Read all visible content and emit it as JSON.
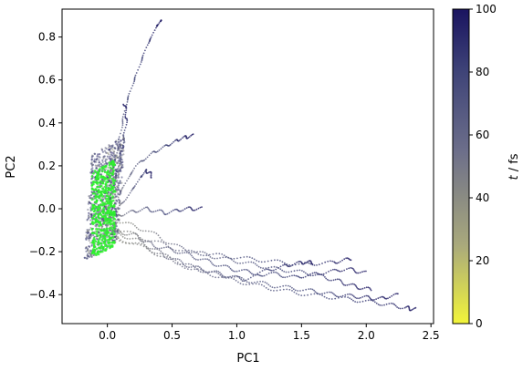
{
  "chart_data": {
    "type": "scatter",
    "title": "",
    "xlabel": "PC1",
    "ylabel": "PC2",
    "xlim": [
      -0.35,
      2.52
    ],
    "ylim": [
      -0.535,
      0.93
    ],
    "xticks": [
      0.0,
      0.5,
      1.0,
      1.5,
      2.0,
      2.5
    ],
    "xtick_labels": [
      "0.0",
      "0.5",
      "1.0",
      "1.5",
      "2.0",
      "2.5"
    ],
    "yticks": [
      -0.4,
      -0.2,
      0.0,
      0.2,
      0.4,
      0.6,
      0.8
    ],
    "ytick_labels": [
      "−0.4",
      "−0.2",
      "0.0",
      "0.2",
      "0.4",
      "0.6",
      "0.8"
    ],
    "grid": false,
    "colorbar": {
      "label": "t / fs",
      "label_parts": [
        "t",
        " / fs"
      ],
      "range": [
        0,
        100
      ],
      "ticks": [
        0,
        20,
        40,
        60,
        80,
        100
      ],
      "tick_labels": [
        "0",
        "20",
        "40",
        "60",
        "80",
        "100"
      ],
      "colors": [
        "#f2f53a",
        "#a9a97c",
        "#6c6e8a",
        "#3f4478",
        "#1a1460"
      ]
    },
    "start_region_color": "#2cf02c",
    "trajectories": [
      {
        "name": "",
        "points": [
          [
            -0.05,
            -0.1
          ],
          [
            0.0,
            0.05
          ],
          [
            0.05,
            0.2
          ],
          [
            0.1,
            0.35
          ],
          [
            0.15,
            0.5
          ],
          [
            0.22,
            0.62
          ],
          [
            0.3,
            0.75
          ],
          [
            0.38,
            0.85
          ],
          [
            0.42,
            0.88
          ]
        ]
      },
      {
        "name": "",
        "points": [
          [
            -0.05,
            -0.1
          ],
          [
            0.02,
            0.05
          ],
          [
            0.08,
            0.18
          ],
          [
            0.12,
            0.3
          ],
          [
            0.15,
            0.42
          ],
          [
            0.13,
            0.5
          ]
        ]
      },
      {
        "name": "",
        "points": [
          [
            0.0,
            -0.05
          ],
          [
            0.12,
            0.1
          ],
          [
            0.22,
            0.2
          ],
          [
            0.35,
            0.26
          ],
          [
            0.48,
            0.3
          ],
          [
            0.58,
            0.33
          ],
          [
            0.66,
            0.34
          ]
        ]
      },
      {
        "name": "",
        "points": [
          [
            0.0,
            -0.05
          ],
          [
            0.15,
            0.05
          ],
          [
            0.25,
            0.14
          ],
          [
            0.3,
            0.18
          ],
          [
            0.35,
            0.15
          ]
        ]
      },
      {
        "name": "",
        "points": [
          [
            0.0,
            -0.05
          ],
          [
            0.15,
            -0.02
          ],
          [
            0.3,
            0.0
          ],
          [
            0.45,
            -0.02
          ],
          [
            0.6,
            0.0
          ],
          [
            0.73,
            0.0
          ]
        ]
      },
      {
        "name": "",
        "points": [
          [
            0.0,
            -0.1
          ],
          [
            0.2,
            -0.12
          ],
          [
            0.35,
            -0.17
          ],
          [
            0.55,
            -0.2
          ],
          [
            0.75,
            -0.24
          ],
          [
            0.95,
            -0.28
          ],
          [
            1.15,
            -0.3
          ],
          [
            1.35,
            -0.27
          ],
          [
            1.5,
            -0.25
          ],
          [
            1.6,
            -0.25
          ]
        ]
      },
      {
        "name": "",
        "points": [
          [
            0.0,
            -0.1
          ],
          [
            0.25,
            -0.15
          ],
          [
            0.45,
            -0.22
          ],
          [
            0.65,
            -0.27
          ],
          [
            0.85,
            -0.3
          ],
          [
            1.05,
            -0.33
          ],
          [
            1.25,
            -0.3
          ],
          [
            1.45,
            -0.32
          ],
          [
            1.65,
            -0.3
          ],
          [
            1.85,
            -0.28
          ],
          [
            2.0,
            -0.3
          ]
        ]
      },
      {
        "name": "",
        "points": [
          [
            0.0,
            -0.12
          ],
          [
            0.3,
            -0.18
          ],
          [
            0.55,
            -0.25
          ],
          [
            0.8,
            -0.3
          ],
          [
            1.05,
            -0.33
          ],
          [
            1.3,
            -0.36
          ],
          [
            1.55,
            -0.38
          ],
          [
            1.75,
            -0.4
          ],
          [
            1.95,
            -0.41
          ],
          [
            2.1,
            -0.42
          ],
          [
            2.25,
            -0.4
          ]
        ]
      },
      {
        "name": "",
        "points": [
          [
            0.0,
            -0.12
          ],
          [
            0.35,
            -0.2
          ],
          [
            0.65,
            -0.28
          ],
          [
            0.95,
            -0.33
          ],
          [
            1.25,
            -0.37
          ],
          [
            1.55,
            -0.4
          ],
          [
            1.85,
            -0.42
          ],
          [
            2.1,
            -0.44
          ],
          [
            2.3,
            -0.46
          ],
          [
            2.38,
            -0.47
          ]
        ]
      },
      {
        "name": "",
        "points": [
          [
            0.0,
            -0.08
          ],
          [
            0.3,
            -0.14
          ],
          [
            0.6,
            -0.2
          ],
          [
            0.9,
            -0.22
          ],
          [
            1.2,
            -0.24
          ],
          [
            1.5,
            -0.26
          ],
          [
            1.75,
            -0.25
          ],
          [
            1.9,
            -0.23
          ]
        ]
      },
      {
        "name": "",
        "points": [
          [
            0.05,
            -0.05
          ],
          [
            0.3,
            -0.1
          ],
          [
            0.55,
            -0.18
          ],
          [
            0.8,
            -0.22
          ],
          [
            1.05,
            -0.25
          ],
          [
            1.3,
            -0.28
          ],
          [
            1.55,
            -0.3
          ],
          [
            1.75,
            -0.33
          ],
          [
            1.9,
            -0.36
          ],
          [
            2.05,
            -0.38
          ]
        ]
      }
    ]
  }
}
